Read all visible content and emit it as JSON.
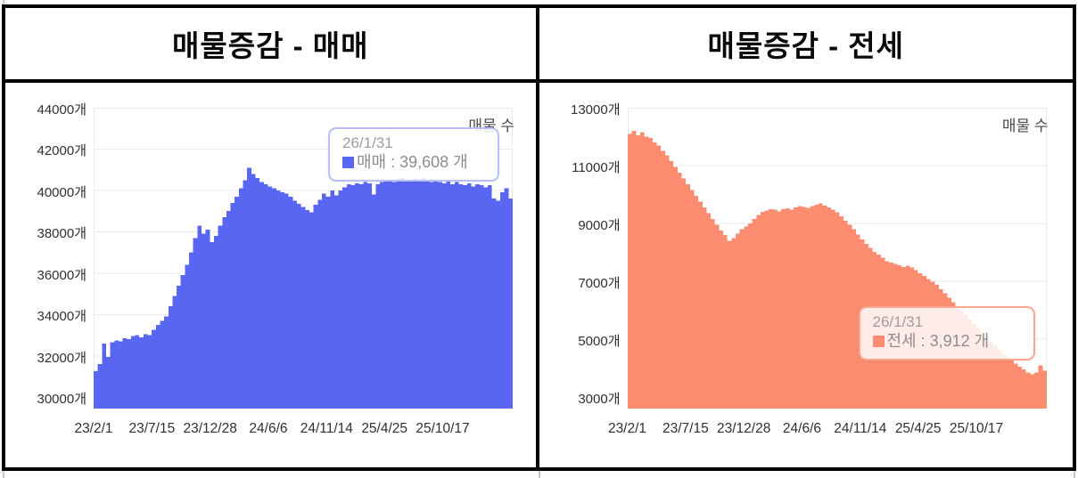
{
  "table_border_color": "#000000",
  "background_color": "#FFFFFF",
  "chart_data": [
    {
      "type": "area",
      "title": "매물증감 - 매매",
      "series_name": "매매",
      "legend": "매물 수",
      "legend_position": "top-right",
      "grid": true,
      "color": "#5866F2",
      "grid_color": "#EAEAEA",
      "axis_text_color": "#303030",
      "unit": "개",
      "ylim": [
        29450,
        44000
      ],
      "yticks": [
        44000,
        42000,
        40000,
        38000,
        36000,
        34000,
        32000,
        30000
      ],
      "ytick_labels": [
        "44000개",
        "42000개",
        "40000개",
        "38000개",
        "36000개",
        "34000개",
        "32000개",
        "30000개"
      ],
      "xticks": [
        {
          "label": "23/2/1",
          "f": 0.0
        },
        {
          "label": "23/7/15",
          "f": 0.139
        },
        {
          "label": "23/12/28",
          "f": 0.278
        },
        {
          "label": "24/6/6",
          "f": 0.417
        },
        {
          "label": "24/11/14",
          "f": 0.556
        },
        {
          "label": "25/4/25",
          "f": 0.694
        },
        {
          "label": "25/10/17",
          "f": 0.833
        }
      ],
      "x_range": [
        "23/2/1",
        "26/1/31"
      ],
      "tooltip": {
        "date": "26/1/31",
        "text": "매매 : 39,608 개",
        "value": 39608,
        "border_color": "#B7C0F6"
      },
      "values": [
        31250,
        31600,
        32600,
        31950,
        32650,
        32750,
        32700,
        32850,
        32800,
        32950,
        33000,
        32900,
        33050,
        33000,
        33250,
        33500,
        33700,
        33900,
        34400,
        34900,
        35400,
        35900,
        36400,
        37000,
        37700,
        38300,
        37900,
        38100,
        37500,
        37800,
        38300,
        38700,
        39000,
        39400,
        39700,
        40100,
        40500,
        41100,
        40800,
        40600,
        40400,
        40300,
        40200,
        40100,
        40000,
        39900,
        39850,
        39700,
        39500,
        39350,
        39200,
        39050,
        38950,
        39300,
        39550,
        39850,
        39700,
        40000,
        39750,
        40000,
        40150,
        40300,
        40250,
        40350,
        40300,
        40400,
        40350,
        39800,
        40300,
        40400,
        40450,
        40500,
        40400,
        40550,
        40600,
        40500,
        40450,
        40550,
        40450,
        40600,
        40500,
        40400,
        40500,
        40400,
        40350,
        40450,
        40300,
        40400,
        40300,
        40250,
        40350,
        40200,
        40300,
        40250,
        40150,
        40250,
        39600,
        39500,
        39900,
        40100,
        39608
      ]
    },
    {
      "type": "area",
      "title": "매물증감 - 전세",
      "series_name": "전세",
      "legend": "매물 수",
      "legend_position": "top-right",
      "grid": true,
      "color": "#FB8C70",
      "grid_color": "#EAEAEA",
      "axis_text_color": "#303030",
      "unit": "개",
      "ylim": [
        2600,
        13000
      ],
      "yticks": [
        13000,
        11000,
        9000,
        7000,
        5000,
        3000
      ],
      "ytick_labels": [
        "13000개",
        "11000개",
        "9000개",
        "7000개",
        "5000개",
        "3000개"
      ],
      "xticks": [
        {
          "label": "23/2/1",
          "f": 0.0
        },
        {
          "label": "23/7/15",
          "f": 0.139
        },
        {
          "label": "23/12/28",
          "f": 0.278
        },
        {
          "label": "24/6/6",
          "f": 0.417
        },
        {
          "label": "24/11/14",
          "f": 0.556
        },
        {
          "label": "25/4/25",
          "f": 0.694
        },
        {
          "label": "25/10/17",
          "f": 0.833
        }
      ],
      "x_range": [
        "23/2/1",
        "26/1/31"
      ],
      "tooltip": {
        "date": "26/1/31",
        "text": "전세 : 3,912 개",
        "value": 3912,
        "border_color": "#F9A78F"
      },
      "values": [
        12100,
        12200,
        12050,
        12150,
        12000,
        11950,
        11800,
        11700,
        11500,
        11350,
        11150,
        10950,
        10750,
        10550,
        10350,
        10150,
        9950,
        9750,
        9550,
        9350,
        9150,
        8950,
        8750,
        8600,
        8400,
        8500,
        8650,
        8800,
        8900,
        9000,
        9150,
        9300,
        9400,
        9450,
        9500,
        9480,
        9420,
        9500,
        9530,
        9470,
        9550,
        9600,
        9570,
        9540,
        9600,
        9650,
        9700,
        9620,
        9560,
        9480,
        9380,
        9250,
        9100,
        8950,
        8800,
        8620,
        8450,
        8300,
        8150,
        8020,
        7920,
        7820,
        7700,
        7650,
        7600,
        7560,
        7500,
        7540,
        7470,
        7380,
        7280,
        7180,
        7080,
        6980,
        6880,
        6730,
        6580,
        6430,
        6280,
        6130,
        5980,
        5830,
        5680,
        5530,
        5380,
        5230,
        5080,
        4930,
        4780,
        4630,
        4500,
        4370,
        4260,
        4150,
        4050,
        3950,
        3850,
        3780,
        3850,
        4100,
        3912
      ]
    }
  ]
}
